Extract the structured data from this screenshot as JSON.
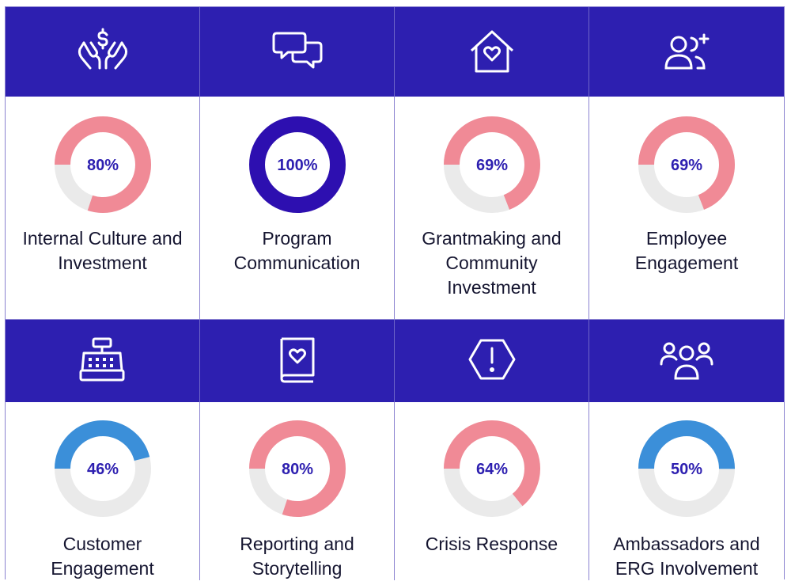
{
  "colors": {
    "header": "#2d1fb0",
    "pink": "#f08a96",
    "blue": "#3b8fd9",
    "purple": "#2d0fb0",
    "track": "#eaeaea"
  },
  "chart_data": {
    "type": "pie",
    "categories": [
      "Internal Culture and Investment",
      "Program Communication",
      "Grantmaking and Community Investment",
      "Employee Engagement",
      "Customer Engagement",
      "Reporting and Storytelling",
      "Crisis Response",
      "Ambassadors and ERG Involvement"
    ],
    "values": [
      80,
      100,
      69,
      69,
      46,
      80,
      64,
      50
    ],
    "value_unit": "%"
  },
  "items": [
    {
      "icon": "hands-dollar-icon",
      "pct_label": "80%",
      "value": 80,
      "color": "#f08a96",
      "label": "Internal Culture and Investment"
    },
    {
      "icon": "chat-bubbles-icon",
      "pct_label": "100%",
      "value": 100,
      "color": "#2d0fb0",
      "label": "Program Communication"
    },
    {
      "icon": "house-heart-icon",
      "pct_label": "69%",
      "value": 69,
      "color": "#f08a96",
      "label": "Grantmaking and Community Investment"
    },
    {
      "icon": "user-add-icon",
      "pct_label": "69%",
      "value": 69,
      "color": "#f08a96",
      "label": "Employee Engagement"
    },
    {
      "icon": "cash-register-icon",
      "pct_label": "46%",
      "value": 46,
      "color": "#3b8fd9",
      "label": "Customer Engagement"
    },
    {
      "icon": "book-heart-icon",
      "pct_label": "80%",
      "value": 80,
      "color": "#f08a96",
      "label": "Reporting and Storytelling"
    },
    {
      "icon": "alert-hexagon-icon",
      "pct_label": "64%",
      "value": 64,
      "color": "#f08a96",
      "label": "Crisis Response"
    },
    {
      "icon": "group-icon",
      "pct_label": "50%",
      "value": 50,
      "color": "#3b8fd9",
      "label": "Ambassadors and ERG Involvement"
    }
  ]
}
